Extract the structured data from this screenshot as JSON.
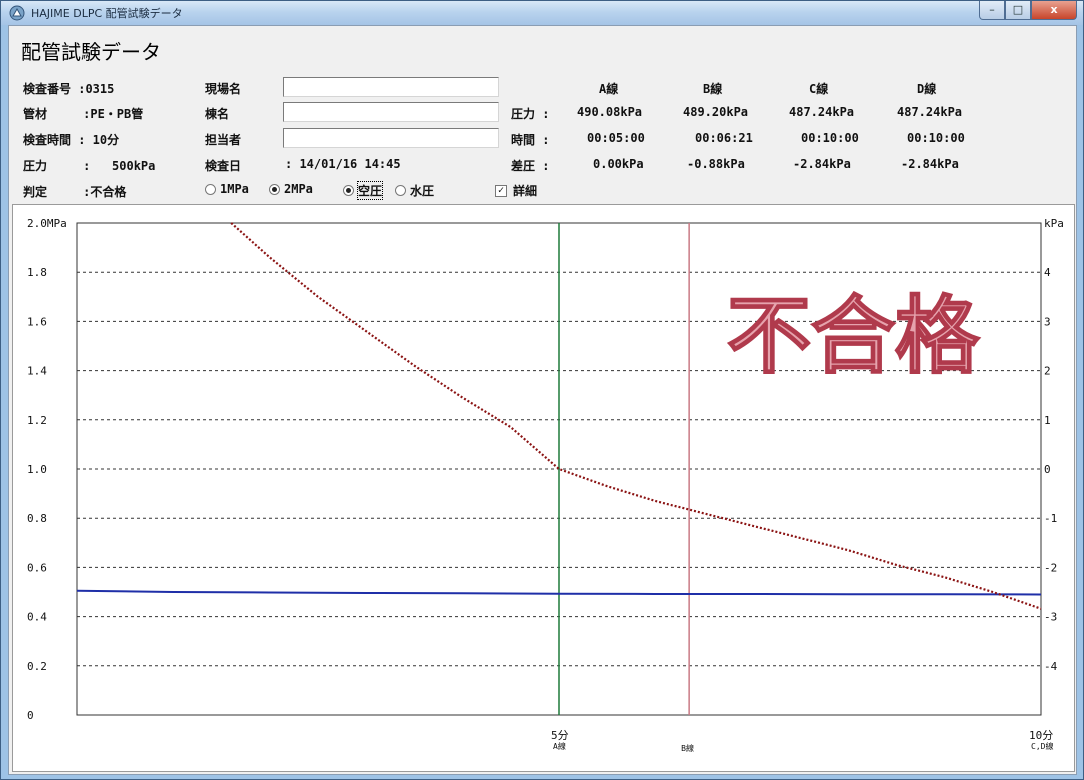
{
  "window": {
    "title": "HAJIME DLPC 配管試験データ",
    "controls": {
      "minimize": "–",
      "maximize": "□",
      "close": "x"
    }
  },
  "page_title": "配管試験データ",
  "info": {
    "inspection_no": "検査番号 :0315",
    "material": "管材     :PE・PB管",
    "inspection_time": "検査時間 : 10分",
    "pressure": "圧力     :   500kPa",
    "judgement": "判定     :不合格",
    "site_label": "現場名",
    "building_label": "棟名",
    "person_label": "担当者",
    "date_label": "検査日",
    "date_value": ": 14/01/16 14:45",
    "site_value": "",
    "building_value": "",
    "person_value": ""
  },
  "lines": {
    "headers": [
      "A線",
      "B線",
      "C線",
      "D線"
    ],
    "rows": [
      {
        "label": "圧力 :",
        "values": [
          "490.08kPa",
          "489.20kPa",
          "487.24kPa",
          "487.24kPa"
        ]
      },
      {
        "label": "時間 :",
        "values": [
          "00:05:00",
          "00:06:21",
          "00:10:00",
          "00:10:00"
        ]
      },
      {
        "label": "差圧 :",
        "values": [
          "0.00kPa",
          "-0.88kPa",
          "-2.84kPa",
          "-2.84kPa"
        ]
      }
    ]
  },
  "options": {
    "range": [
      {
        "label": "1MPa",
        "selected": false
      },
      {
        "label": "2MPa",
        "selected": true
      }
    ],
    "medium": [
      {
        "label": "空圧",
        "selected": true
      },
      {
        "label": "水圧",
        "selected": false
      }
    ],
    "detail": {
      "label": "詳細",
      "checked": true,
      "check_mark": "✓"
    }
  },
  "chart_data": {
    "type": "line",
    "left_axis": {
      "unit": "MPa",
      "ylim": [
        0,
        2.0
      ],
      "ticks": [
        "2.0MPa",
        "1.8",
        "1.6",
        "1.4",
        "1.2",
        "1.0",
        "0.8",
        "0.6",
        "0.4",
        "0.2",
        "0"
      ]
    },
    "right_axis": {
      "unit": "kPa",
      "ylim": [
        -5,
        5
      ],
      "ticks": [
        "kPa",
        "4",
        "3",
        "2",
        "1",
        "0",
        "-1",
        "-2",
        "-3",
        "-4"
      ]
    },
    "x_axis": {
      "unit": "分",
      "xlim": [
        0,
        10
      ],
      "ticks": [
        {
          "x": 5,
          "label": "5分",
          "sub": "A線"
        },
        {
          "x": 10,
          "label": "10分",
          "sub": "C,D線"
        }
      ],
      "marker_b_label": "B線"
    },
    "grid": true,
    "markers": [
      {
        "name": "A線",
        "x": 5.0,
        "color": "#1f7a3a"
      },
      {
        "name": "B線",
        "x": 6.35,
        "color": "#c97a85"
      }
    ],
    "series": [
      {
        "axis": "left",
        "color": "#1f2fa8",
        "x": [
          0,
          1,
          2,
          3,
          4,
          5,
          6,
          7,
          8,
          9,
          10
        ],
        "y": [
          0.505,
          0.5,
          0.498,
          0.496,
          0.495,
          0.493,
          0.492,
          0.492,
          0.491,
          0.491,
          0.49
        ]
      },
      {
        "axis": "right",
        "color": "#8b1414",
        "x": [
          1.6,
          2.0,
          2.5,
          3.0,
          3.5,
          4.0,
          4.5,
          5.0,
          5.5,
          6.0,
          6.5,
          7.0,
          7.5,
          8.0,
          8.5,
          9.0,
          9.5,
          10.0
        ],
        "y": [
          5.0,
          4.3,
          3.5,
          2.8,
          2.1,
          1.45,
          0.85,
          0.0,
          -0.35,
          -0.65,
          -0.9,
          -1.15,
          -1.4,
          -1.65,
          -1.95,
          -2.2,
          -2.5,
          -2.84
        ]
      }
    ],
    "stamp": "不合格"
  }
}
